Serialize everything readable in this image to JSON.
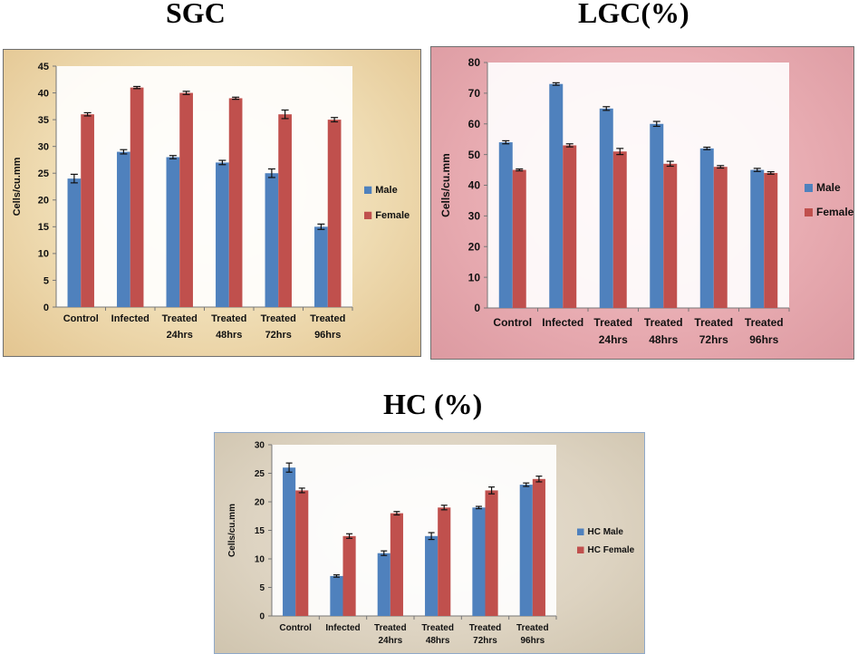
{
  "titles": {
    "sgc": "SGC",
    "lgc": "LGC(%)",
    "hc": "HC (%)"
  },
  "chart_data": [
    {
      "id": "sgc",
      "type": "bar",
      "title": "SGC",
      "ylabel": "Cells/cu.mm",
      "xlabel": "",
      "categories": [
        [
          "Control"
        ],
        [
          "Infected"
        ],
        [
          "Treated",
          "24hrs"
        ],
        [
          "Treated",
          "48hrs"
        ],
        [
          "Treated",
          "72hrs"
        ],
        [
          "Treated",
          "96hrs"
        ]
      ],
      "series": [
        {
          "name": "Male",
          "color": "#4f81bd",
          "values": [
            24,
            29,
            28,
            27,
            25,
            15
          ],
          "errors": [
            0.8,
            0.4,
            0.3,
            0.4,
            0.8,
            0.5
          ]
        },
        {
          "name": "Female",
          "color": "#c0504d",
          "values": [
            36,
            41,
            40,
            39,
            36,
            35
          ],
          "errors": [
            0.3,
            0.2,
            0.3,
            0.2,
            0.8,
            0.4
          ]
        }
      ],
      "ylim": [
        0,
        45
      ],
      "yticks": [
        0,
        5,
        10,
        15,
        20,
        25,
        30,
        35,
        40,
        45
      ],
      "legend": "right",
      "grid": false
    },
    {
      "id": "lgc",
      "type": "bar",
      "title": "LGC(%)",
      "ylabel": "Cells/cu.mm",
      "xlabel": "",
      "categories": [
        [
          "Control"
        ],
        [
          "Infected"
        ],
        [
          "Treated",
          "24hrs"
        ],
        [
          "Treated",
          "48hrs"
        ],
        [
          "Treated",
          "72hrs"
        ],
        [
          "Treated",
          "96hrs"
        ]
      ],
      "series": [
        {
          "name": "Male",
          "color": "#4f81bd",
          "values": [
            54,
            73,
            65,
            60,
            52,
            45
          ],
          "errors": [
            0.5,
            0.4,
            0.6,
            0.8,
            0.4,
            0.5
          ]
        },
        {
          "name": "Female",
          "color": "#c0504d",
          "values": [
            45,
            53,
            51,
            47,
            46,
            44
          ],
          "errors": [
            0.3,
            0.5,
            1.0,
            0.8,
            0.4,
            0.4
          ]
        }
      ],
      "ylim": [
        0,
        80
      ],
      "yticks": [
        0,
        10,
        20,
        30,
        40,
        50,
        60,
        70,
        80
      ],
      "legend": "right",
      "grid": false
    },
    {
      "id": "hc",
      "type": "bar",
      "title": "HC (%)",
      "ylabel": "Cells/cu.mm",
      "xlabel": "",
      "categories": [
        [
          "Control"
        ],
        [
          "Infected"
        ],
        [
          "Treated",
          "24hrs"
        ],
        [
          "Treated",
          "48hrs"
        ],
        [
          "Treated",
          "72hrs"
        ],
        [
          "Treated",
          "96hrs"
        ]
      ],
      "series": [
        {
          "name": "HC Male",
          "color": "#4f81bd",
          "values": [
            26,
            7,
            11,
            14,
            19,
            23
          ],
          "errors": [
            0.8,
            0.2,
            0.4,
            0.6,
            0.2,
            0.3
          ]
        },
        {
          "name": "HC Female",
          "color": "#c0504d",
          "values": [
            22,
            14,
            18,
            19,
            22,
            24
          ],
          "errors": [
            0.4,
            0.4,
            0.3,
            0.4,
            0.6,
            0.5
          ]
        }
      ],
      "ylim": [
        0,
        30
      ],
      "yticks": [
        0,
        5,
        10,
        15,
        20,
        25,
        30
      ],
      "legend": "right",
      "grid": false
    }
  ]
}
